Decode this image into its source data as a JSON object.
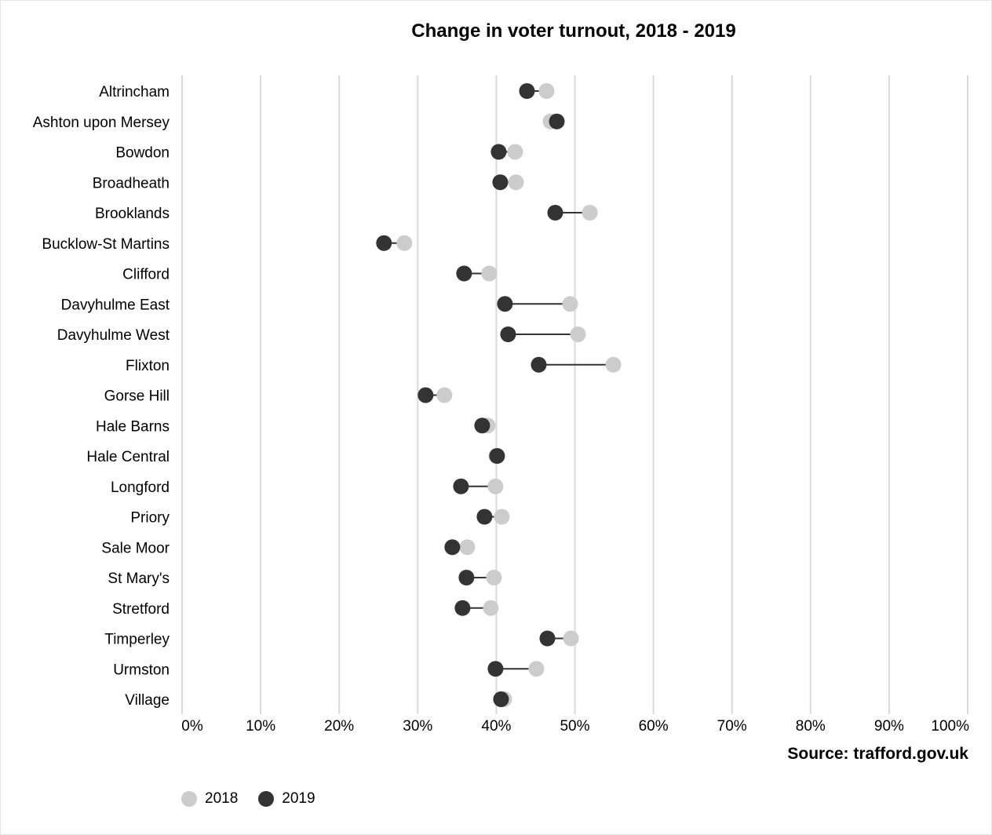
{
  "chart_data": {
    "type": "scatter",
    "title": "Change in voter turnout, 2018 - 2019",
    "source": "Source: trafford.gov.uk",
    "xlim": [
      0,
      100
    ],
    "x_ticks": [
      "0%",
      "10%",
      "20%",
      "30%",
      "40%",
      "50%",
      "60%",
      "70%",
      "80%",
      "90%",
      "100%"
    ],
    "grid": "vertical",
    "legend_position": "bottom-left",
    "categories": [
      "Altrincham",
      "Ashton upon Mersey",
      "Bowdon",
      "Broadheath",
      "Brooklands",
      "Bucklow-St Martins",
      "Clifford",
      "Davyhulme East",
      "Davyhulme West",
      "Flixton",
      "Gorse Hill",
      "Hale Barns",
      "Hale Central",
      "Longford",
      "Priory",
      "Sale Moor",
      "St Mary's",
      "Stretford",
      "Timperley",
      "Urmston",
      "Village"
    ],
    "series": [
      {
        "name": "2018",
        "color": "#cccccc",
        "values": [
          46.4,
          46.9,
          42.4,
          42.5,
          51.9,
          28.3,
          39.1,
          49.4,
          50.4,
          54.9,
          33.4,
          38.9,
          40.0,
          39.9,
          40.7,
          36.3,
          39.7,
          39.3,
          49.5,
          45.1,
          41.0
        ]
      },
      {
        "name": "2019",
        "color": "#333333",
        "values": [
          43.9,
          47.7,
          40.3,
          40.5,
          47.5,
          25.7,
          35.9,
          41.1,
          41.5,
          45.4,
          31.0,
          38.2,
          40.1,
          35.5,
          38.5,
          34.4,
          36.2,
          35.7,
          46.5,
          39.9,
          40.6
        ]
      }
    ]
  },
  "legend": {
    "label_2018": "2018",
    "label_2019": "2019"
  }
}
